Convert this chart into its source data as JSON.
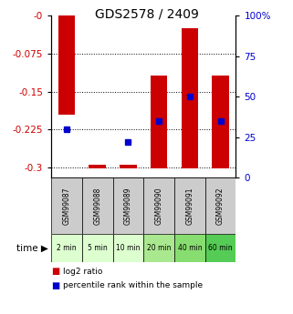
{
  "title": "GDS2578 / 2409",
  "samples": [
    "GSM99087",
    "GSM99088",
    "GSM99089",
    "GSM99090",
    "GSM99091",
    "GSM99092"
  ],
  "time_labels": [
    "2 min",
    "5 min",
    "10 min",
    "20 min",
    "40 min",
    "60 min"
  ],
  "log2_ratio_bottom": [
    -0.195,
    -0.302,
    -0.302,
    -0.302,
    -0.302,
    -0.302
  ],
  "log2_ratio_top": [
    -0.0,
    -0.295,
    -0.295,
    -0.118,
    -0.025,
    -0.118
  ],
  "percentile_rank_left": [
    30,
    -1,
    -1,
    35,
    50,
    35
  ],
  "percentile_rank_right": [
    -1,
    -1,
    22,
    -1,
    -1,
    -1
  ],
  "ylim_left": [
    -0.32,
    0.0
  ],
  "ylim_right": [
    0,
    100
  ],
  "yticks_left": [
    0,
    -0.075,
    -0.15,
    -0.225,
    -0.3
  ],
  "ytick_labels_left": [
    "-0",
    "-0.075",
    "-0.15",
    "-0.225",
    "-0.3"
  ],
  "yticks_right": [
    0,
    25,
    50,
    75,
    100
  ],
  "ytick_labels_right": [
    "0",
    "25",
    "50",
    "75",
    "100%"
  ],
  "bar_color": "#cc0000",
  "dot_color": "#0000cc",
  "time_colors": [
    "#ddffd0",
    "#ddffd0",
    "#ddffd0",
    "#aae890",
    "#88dd70",
    "#55cc55"
  ],
  "gsm_bg": "#cccccc",
  "title_fontsize": 10
}
